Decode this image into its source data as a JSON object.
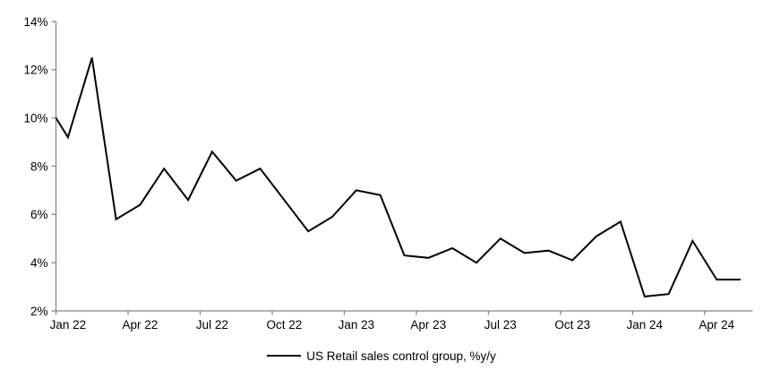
{
  "legend": {
    "label": "US Retail sales control group, %y/y"
  },
  "chart_data": {
    "type": "line",
    "title": "",
    "xlabel": "",
    "ylabel": "",
    "series": [
      {
        "name": "US Retail sales control group, %y/y",
        "color": "#000000",
        "x": [
          "Dec 21",
          "Jan 22",
          "Feb 22",
          "Mar 22",
          "Apr 22",
          "May 22",
          "Jun 22",
          "Jul 22",
          "Aug 22",
          "Sep 22",
          "Oct 22",
          "Nov 22",
          "Dec 22",
          "Jan 23",
          "Feb 23",
          "Mar 23",
          "Apr 23",
          "May 23",
          "Jun 23",
          "Jul 23",
          "Aug 23",
          "Sep 23",
          "Oct 23",
          "Nov 23",
          "Dec 23",
          "Jan 24",
          "Feb 24",
          "Mar 24",
          "Apr 24",
          "May 24"
        ],
        "values": [
          10.8,
          9.2,
          12.5,
          5.8,
          6.4,
          7.9,
          6.6,
          8.6,
          7.4,
          7.9,
          6.6,
          5.3,
          5.9,
          7.0,
          6.8,
          4.3,
          4.2,
          4.6,
          4.0,
          5.0,
          4.4,
          4.5,
          4.1,
          5.1,
          5.7,
          2.6,
          2.7,
          4.9,
          3.3,
          3.3
        ]
      }
    ],
    "note": "First value (Dec 21) lies left of the plot edge; the line is clipped at the y-axis, visibly entering the plot at about 10.0%.",
    "first_point_offset": -1,
    "n_categories": 29,
    "x_tick_labels": [
      "Jan 22",
      "Apr 22",
      "Jul 22",
      "Oct 22",
      "Jan 23",
      "Apr 23",
      "Jul 23",
      "Oct 23",
      "Jan 24",
      "Apr 24"
    ],
    "x_tick_interval_months": 3,
    "y_tick_labels": [
      "2%",
      "4%",
      "6%",
      "8%",
      "10%",
      "12%",
      "14%"
    ],
    "ylim": [
      2,
      14
    ],
    "y_step": 2,
    "grid": "off",
    "legend_position": "bottom-center",
    "axis_color": "#878787",
    "line_color": "#000000",
    "text_color": "#000000"
  }
}
